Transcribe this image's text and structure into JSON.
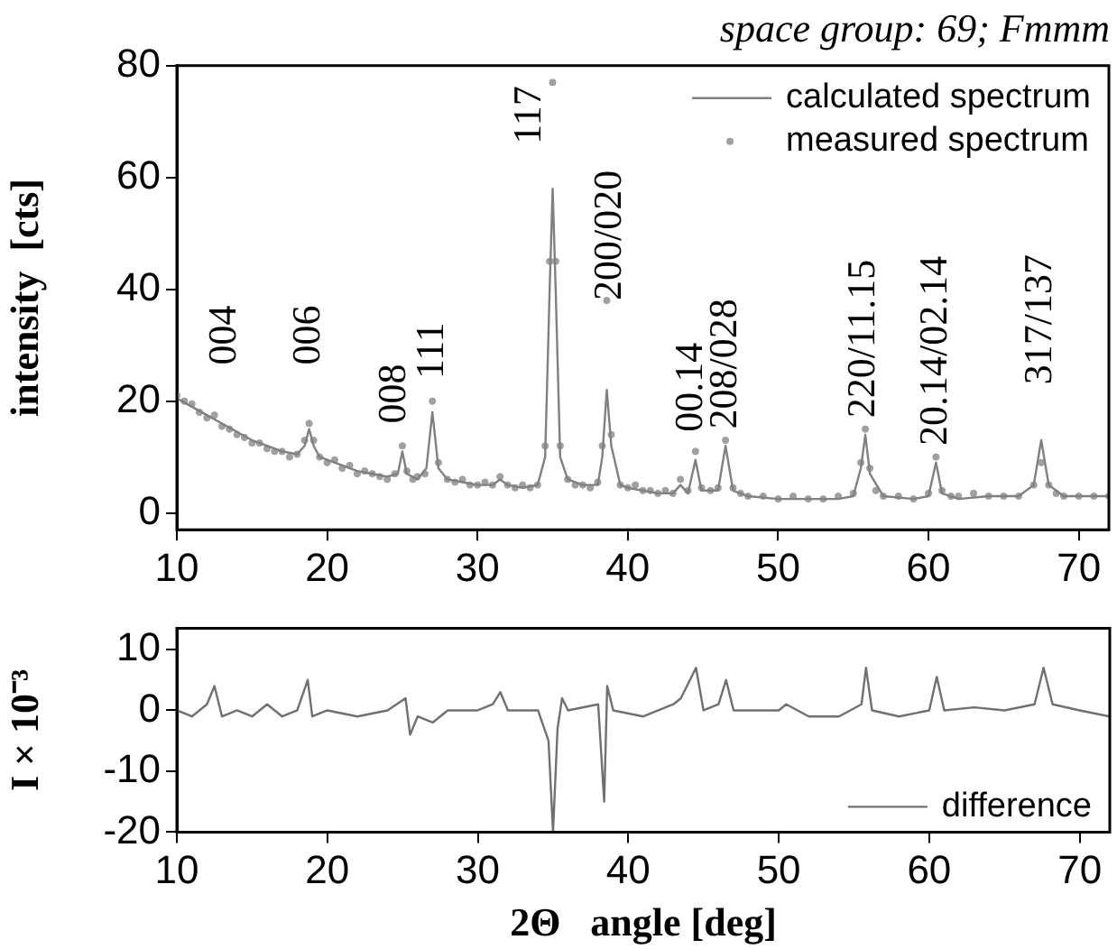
{
  "chart_data": [
    {
      "type": "line",
      "title": "space group: 69; Fmmm",
      "ylabel": "intensity  [cts]",
      "xlim": [
        10,
        72
      ],
      "xticks": [
        10,
        20,
        30,
        40,
        50,
        60,
        70
      ],
      "ylim": [
        -3,
        80
      ],
      "yticks": [
        0,
        20,
        40,
        60,
        80
      ],
      "grid": false,
      "legend": "top right",
      "series": [
        {
          "name": "calculated spectrum",
          "type": "line",
          "marker": "none",
          "color": "#808080",
          "x": [
            10,
            11,
            12,
            13,
            14,
            15,
            16,
            17,
            18,
            18.5,
            18.8,
            19.1,
            19.5,
            20,
            21,
            22,
            23,
            24,
            24.7,
            25,
            25.3,
            26,
            26.6,
            27,
            27.4,
            28,
            29,
            30,
            31,
            31.5,
            32,
            33,
            34,
            34.5,
            34.8,
            35,
            35.2,
            35.5,
            36,
            37,
            38,
            38.3,
            38.6,
            38.9,
            39.5,
            40,
            41,
            42,
            43,
            43.5,
            44,
            44.5,
            44.9,
            46,
            46.5,
            47,
            48,
            50,
            52,
            54,
            55,
            55.5,
            55.8,
            56.1,
            57,
            59,
            60,
            60.5,
            60.9,
            62,
            64,
            66,
            67,
            67.5,
            68,
            69,
            70,
            72
          ],
          "values": [
            20.5,
            19,
            17.5,
            16,
            14.5,
            13,
            12,
            11,
            10.5,
            12,
            15,
            12,
            10,
            9.5,
            8.5,
            7.5,
            7,
            6.5,
            7,
            11,
            7,
            6,
            8,
            18,
            8,
            6,
            5.5,
            5,
            5,
            6,
            5,
            4.5,
            5,
            10,
            40,
            58,
            40,
            10,
            6,
            5,
            5,
            10,
            22,
            12,
            5,
            4.5,
            4,
            3.5,
            3.5,
            5,
            3.5,
            9.5,
            4,
            4,
            12,
            4,
            3,
            2.5,
            2.5,
            2.5,
            3,
            8,
            14,
            7,
            3,
            2.5,
            3,
            9,
            3.5,
            2.5,
            3,
            3,
            5,
            13,
            5,
            3,
            3,
            3
          ]
        },
        {
          "name": "measured spectrum",
          "type": "scatter",
          "marker": "circle",
          "color": "#a0a0a0",
          "x": [
            10,
            10.5,
            11,
            11.5,
            12,
            12.5,
            13,
            13.5,
            14,
            14.5,
            15,
            15.5,
            16,
            16.5,
            17,
            17.5,
            18,
            18.5,
            18.8,
            19.1,
            19.5,
            20,
            20.5,
            21,
            21.5,
            22,
            22.5,
            23,
            23.5,
            24,
            24.5,
            25,
            25.3,
            25.7,
            26,
            26.5,
            27,
            27.4,
            28,
            28.5,
            29,
            29.5,
            30,
            30.5,
            31,
            31.5,
            32,
            32.5,
            33,
            33.5,
            34,
            34.5,
            34.8,
            35,
            35.2,
            35.5,
            36,
            36.5,
            37,
            37.5,
            38,
            38.3,
            38.6,
            38.9,
            39.5,
            40,
            40.5,
            41,
            41.5,
            42,
            42.5,
            43,
            43.5,
            44,
            44.5,
            44.9,
            45.5,
            46,
            46.5,
            47,
            47.5,
            48,
            49,
            50,
            51,
            52,
            53,
            54,
            55,
            55.5,
            55.8,
            56.1,
            56.5,
            57,
            58,
            59,
            60,
            60.5,
            60.9,
            61.5,
            62,
            63,
            64,
            65,
            66,
            67,
            67.5,
            68,
            68.5,
            69,
            70,
            71,
            72
          ],
          "values": [
            21,
            20,
            19.5,
            18,
            17,
            17.5,
            15.5,
            15,
            14,
            13.5,
            12.5,
            12.5,
            11.5,
            11,
            11,
            10,
            10.5,
            13,
            16,
            13,
            10,
            9,
            9.5,
            8,
            8.5,
            7,
            7.5,
            7,
            6.5,
            6,
            7,
            12,
            7.5,
            6,
            6.5,
            7,
            20,
            9,
            6,
            5.5,
            6,
            5,
            5,
            5.5,
            5,
            6.5,
            5,
            4.5,
            5,
            4.5,
            5,
            12,
            45,
            77,
            45,
            12,
            6,
            5,
            5,
            4.5,
            5.5,
            12,
            38,
            14,
            5,
            4.5,
            5,
            4,
            4,
            3.5,
            4,
            3.5,
            6,
            4,
            11,
            4.5,
            4,
            4.5,
            13,
            4.5,
            3.5,
            3,
            3,
            2.5,
            3,
            2.5,
            2.5,
            3,
            3.5,
            9,
            15,
            8,
            4,
            3,
            3,
            2.5,
            3.5,
            10,
            4,
            3,
            3,
            3.5,
            3,
            3,
            3,
            5,
            9,
            5,
            3.5,
            3,
            3,
            3,
            3
          ]
        }
      ],
      "annotations": [
        "004",
        "006",
        "008",
        "111",
        "117",
        "200/020",
        "00.14",
        "208/028",
        "220/11.15",
        "20.14/02.14",
        "317/137"
      ]
    },
    {
      "type": "line",
      "ylabel": "I × 10⁻³",
      "xlabel": "2Θ   angle [deg]",
      "xlim": [
        10,
        72
      ],
      "xticks": [
        10,
        20,
        30,
        40,
        50,
        60,
        70
      ],
      "ylim": [
        -20,
        13.5
      ],
      "yticks": [
        -20,
        -10,
        0,
        10
      ],
      "grid": false,
      "legend": "bottom right",
      "series": [
        {
          "name": "difference",
          "type": "line",
          "marker": "none",
          "color": "#707070",
          "x": [
            10,
            11,
            12,
            12.5,
            13,
            14,
            15,
            16,
            17,
            18,
            18.7,
            19,
            20,
            22,
            24,
            25.2,
            25.5,
            26,
            27,
            28,
            30,
            31,
            31.5,
            32,
            34,
            34.7,
            35,
            35.3,
            35.6,
            36,
            38,
            38.4,
            38.6,
            39,
            41,
            43,
            43.5,
            44.5,
            45,
            46,
            46.5,
            47,
            50,
            50.5,
            52,
            54,
            55.5,
            55.8,
            56.2,
            58,
            60,
            60.5,
            61,
            63,
            65,
            67,
            67.6,
            68.2,
            70,
            72
          ],
          "values": [
            0,
            -1,
            1,
            4,
            -1,
            0,
            -1,
            1,
            -1,
            0,
            5,
            -1,
            0,
            -1,
            0,
            2,
            -4,
            -1,
            -2,
            0,
            0,
            1,
            3,
            0,
            0,
            -5,
            -20,
            -3,
            2,
            0,
            1,
            -15,
            4,
            0,
            -1,
            1,
            2,
            7,
            0,
            1,
            5,
            0,
            0,
            1,
            -1,
            -1,
            1,
            7,
            0,
            -1,
            0,
            5.5,
            0,
            0.5,
            0,
            1,
            7,
            1,
            0,
            -1
          ]
        }
      ]
    }
  ]
}
